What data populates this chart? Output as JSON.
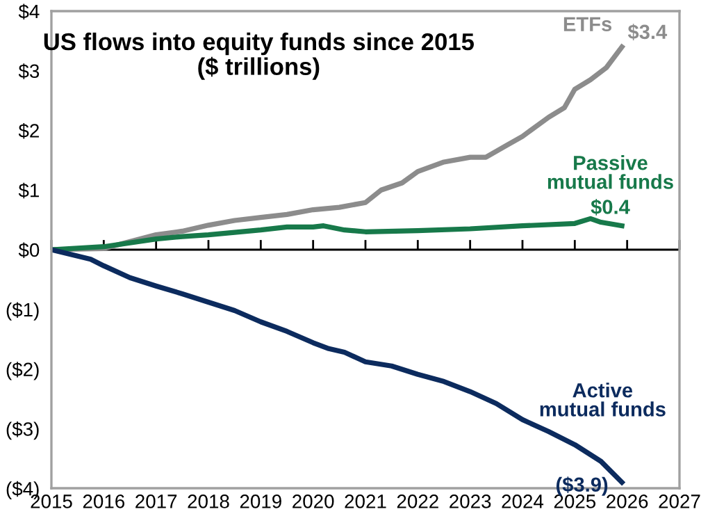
{
  "chart_data": {
    "type": "line",
    "title": "US flows into equity funds since 2015\n($ trillions)",
    "xlim": [
      2015,
      2027
    ],
    "xticks": [
      2015,
      2016,
      2017,
      2018,
      2019,
      2020,
      2021,
      2022,
      2023,
      2024,
      2025,
      2026,
      2027
    ],
    "ylim": [
      -4,
      4
    ],
    "yticks": [
      {
        "value": 4,
        "label": "$4"
      },
      {
        "value": 3,
        "label": "$3"
      },
      {
        "value": 2,
        "label": "$2"
      },
      {
        "value": 1,
        "label": "$1"
      },
      {
        "value": 0,
        "label": "$0"
      },
      {
        "value": -1,
        "label": "($1)"
      },
      {
        "value": -2,
        "label": "($2)"
      },
      {
        "value": -3,
        "label": "($3)"
      },
      {
        "value": -4,
        "label": "($4)"
      }
    ],
    "grid": false,
    "legend": false,
    "ref_lines": [
      {
        "axis": "y",
        "value": 0,
        "color": "#000000"
      }
    ],
    "series": [
      {
        "name": "ETFs",
        "color": "#8c8c8c",
        "x": [
          2015,
          2016,
          2017,
          2017.5,
          2018,
          2018.5,
          2019,
          2019.5,
          2020,
          2020.5,
          2021,
          2021.3,
          2021.7,
          2022,
          2022.5,
          2023,
          2023.3,
          2023.7,
          2024,
          2024.5,
          2024.8,
          2025,
          2025.3,
          2025.6,
          2025.9
        ],
        "values": [
          0,
          0.02,
          0.25,
          0.31,
          0.41,
          0.49,
          0.54,
          0.59,
          0.67,
          0.71,
          0.79,
          1.0,
          1.12,
          1.31,
          1.47,
          1.55,
          1.55,
          1.75,
          1.9,
          2.22,
          2.38,
          2.69,
          2.85,
          3.05,
          3.4
        ],
        "value_labels": [
          null,
          null,
          null,
          null,
          null,
          null,
          null,
          null,
          null,
          null,
          null,
          null,
          null,
          null,
          null,
          null,
          null,
          null,
          null,
          null,
          null,
          null,
          null,
          null,
          "$3.4"
        ]
      },
      {
        "name": "Passive mutual funds",
        "color": "#17794a",
        "x": [
          2015,
          2016,
          2017,
          2017.5,
          2018,
          2019,
          2019.5,
          2020,
          2020.2,
          2020.6,
          2021,
          2022,
          2023,
          2024,
          2025,
          2025.3,
          2025.5,
          2025.9
        ],
        "values": [
          0,
          0.05,
          0.18,
          0.22,
          0.25,
          0.33,
          0.38,
          0.38,
          0.4,
          0.33,
          0.3,
          0.32,
          0.35,
          0.4,
          0.44,
          0.52,
          0.46,
          0.4
        ],
        "value_labels": [
          null,
          null,
          null,
          null,
          null,
          null,
          null,
          null,
          null,
          null,
          null,
          null,
          null,
          null,
          null,
          null,
          null,
          "$0.4"
        ]
      },
      {
        "name": "Active mutual funds",
        "color": "#0c2b5e",
        "x": [
          2015,
          2015.75,
          2016,
          2016.5,
          2017,
          2017.5,
          2018,
          2018.5,
          2019,
          2019.5,
          2020,
          2020.3,
          2020.6,
          2021,
          2021.5,
          2022,
          2022.5,
          2023,
          2023.5,
          2024,
          2024.5,
          2025,
          2025.5,
          2025.9
        ],
        "values": [
          0,
          -0.16,
          -0.27,
          -0.47,
          -0.61,
          -0.74,
          -0.88,
          -1.02,
          -1.21,
          -1.37,
          -1.56,
          -1.66,
          -1.72,
          -1.88,
          -1.95,
          -2.09,
          -2.21,
          -2.38,
          -2.58,
          -2.85,
          -3.05,
          -3.27,
          -3.55,
          -3.9
        ],
        "value_labels": [
          null,
          null,
          null,
          null,
          null,
          null,
          null,
          null,
          null,
          null,
          null,
          null,
          null,
          null,
          null,
          null,
          null,
          null,
          null,
          null,
          null,
          null,
          null,
          "($3.9)"
        ]
      }
    ]
  }
}
